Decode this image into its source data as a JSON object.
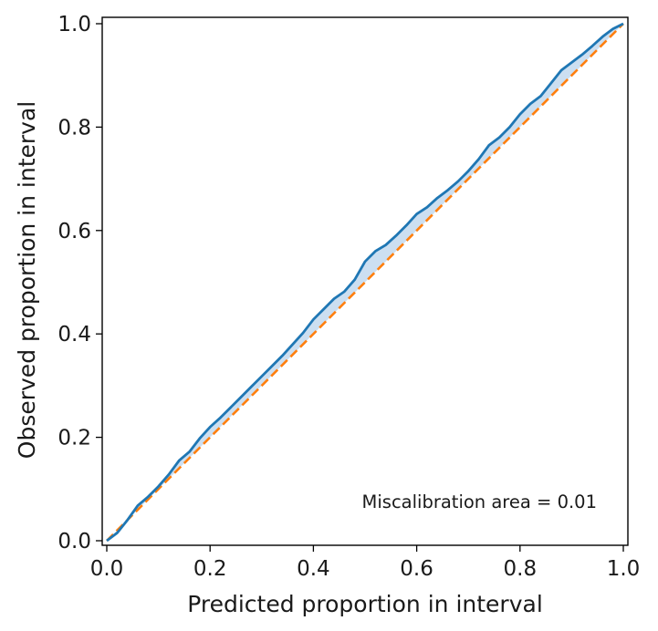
{
  "chart_data": {
    "type": "line",
    "xlabel": "Predicted proportion in interval",
    "ylabel": "Observed proportion in interval",
    "xlim": [
      0.0,
      1.01
    ],
    "ylim": [
      0.0,
      1.01
    ],
    "xticks": [
      "0.0",
      "0.2",
      "0.4",
      "0.6",
      "0.8",
      "1.0"
    ],
    "yticks": [
      "0.0",
      "0.2",
      "0.4",
      "0.6",
      "0.8",
      "1.0"
    ],
    "annotation": "Miscalibration area = 0.01",
    "grid": false,
    "series": [
      {
        "role": "observed",
        "color": "#1f77b4",
        "x": [
          0.0,
          0.02,
          0.04,
          0.06,
          0.08,
          0.1,
          0.12,
          0.14,
          0.16,
          0.18,
          0.2,
          0.22,
          0.24,
          0.26,
          0.28,
          0.3,
          0.32,
          0.34,
          0.36,
          0.38,
          0.4,
          0.42,
          0.44,
          0.46,
          0.48,
          0.5,
          0.52,
          0.54,
          0.56,
          0.58,
          0.6,
          0.62,
          0.64,
          0.66,
          0.68,
          0.7,
          0.72,
          0.74,
          0.76,
          0.78,
          0.8,
          0.82,
          0.84,
          0.86,
          0.88,
          0.9,
          0.92,
          0.94,
          0.96,
          0.98,
          1.0
        ],
        "y": [
          0.0,
          0.015,
          0.04,
          0.068,
          0.085,
          0.105,
          0.128,
          0.155,
          0.172,
          0.198,
          0.22,
          0.238,
          0.258,
          0.278,
          0.298,
          0.318,
          0.338,
          0.358,
          0.38,
          0.402,
          0.428,
          0.448,
          0.468,
          0.482,
          0.505,
          0.54,
          0.56,
          0.572,
          0.59,
          0.61,
          0.632,
          0.645,
          0.663,
          0.678,
          0.695,
          0.715,
          0.738,
          0.765,
          0.78,
          0.8,
          0.825,
          0.845,
          0.86,
          0.885,
          0.91,
          0.925,
          0.94,
          0.957,
          0.975,
          0.99,
          1.0
        ]
      },
      {
        "role": "ideal",
        "color": "#ff7f0e",
        "dashed": true,
        "x": [
          0.0,
          1.0
        ],
        "y": [
          0.0,
          1.0
        ]
      }
    ],
    "fill_color": "#c6dcef"
  }
}
